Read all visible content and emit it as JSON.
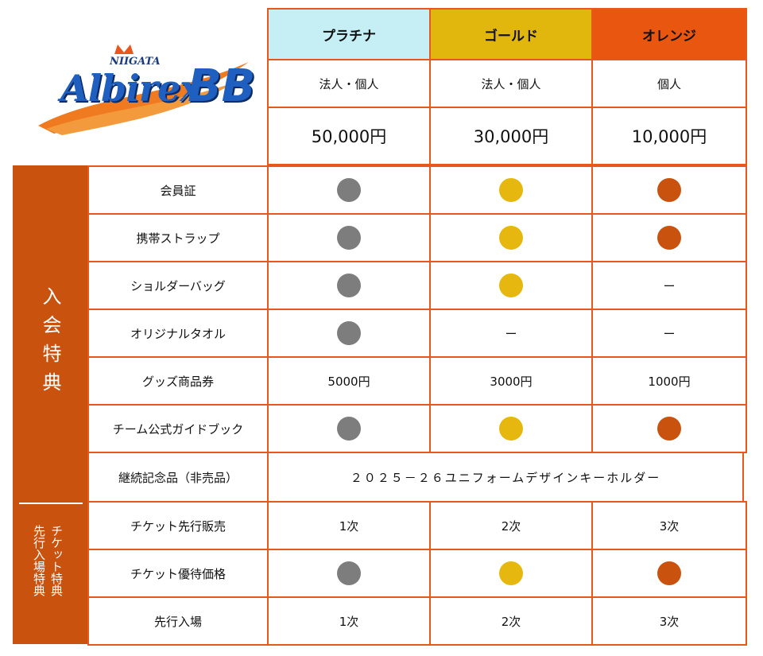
{
  "logo": {
    "top_text": "NIIGATA",
    "main_text": "Albirex",
    "suffix_text": "BB"
  },
  "colors": {
    "border": "#e8571c",
    "sidebar": "#c9520e",
    "platinum_bg": "#c5eef5",
    "gold_bg": "#e2b70d",
    "orange_bg": "#e8560f",
    "dot_platinum": "#7d7d7d",
    "dot_gold": "#e6b80f",
    "dot_orange": "#c9520e"
  },
  "tiers": [
    {
      "name": "プラチナ",
      "eligibility": "法人・個人",
      "price": "50,000円"
    },
    {
      "name": "ゴールド",
      "eligibility": "法人・個人",
      "price": "30,000円"
    },
    {
      "name": "オレンジ",
      "eligibility": "個人",
      "price": "10,000円"
    }
  ],
  "sections": {
    "membership": "入会特典",
    "ticket_line1": "チケット特典",
    "ticket_line2": "先行入場特典"
  },
  "rows": [
    {
      "label": "会員証",
      "cells": [
        "dot:platinum",
        "dot:gold",
        "dot:orange"
      ]
    },
    {
      "label": "携帯ストラップ",
      "cells": [
        "dot:platinum",
        "dot:gold",
        "dot:orange"
      ]
    },
    {
      "label": "ショルダーバッグ",
      "cells": [
        "dot:platinum",
        "dot:gold",
        "ー"
      ]
    },
    {
      "label": "オリジナルタオル",
      "cells": [
        "dot:platinum",
        "ー",
        "ー"
      ]
    },
    {
      "label": "グッズ商品券",
      "cells": [
        "5000円",
        "3000円",
        "1000円"
      ]
    },
    {
      "label": "チーム公式ガイドブック",
      "cells": [
        "dot:platinum",
        "dot:gold",
        "dot:orange"
      ]
    },
    {
      "label": "継続記念品（非売品）",
      "merged": "２０２５－２６ユニフォームデザインキーホルダー"
    },
    {
      "label": "チケット先行販売",
      "cells": [
        "1次",
        "2次",
        "3次"
      ]
    },
    {
      "label": "チケット優待価格",
      "cells": [
        "dot:platinum",
        "dot:gold",
        "dot:orange"
      ]
    },
    {
      "label": "先行入場",
      "cells": [
        "1次",
        "2次",
        "3次"
      ]
    }
  ]
}
